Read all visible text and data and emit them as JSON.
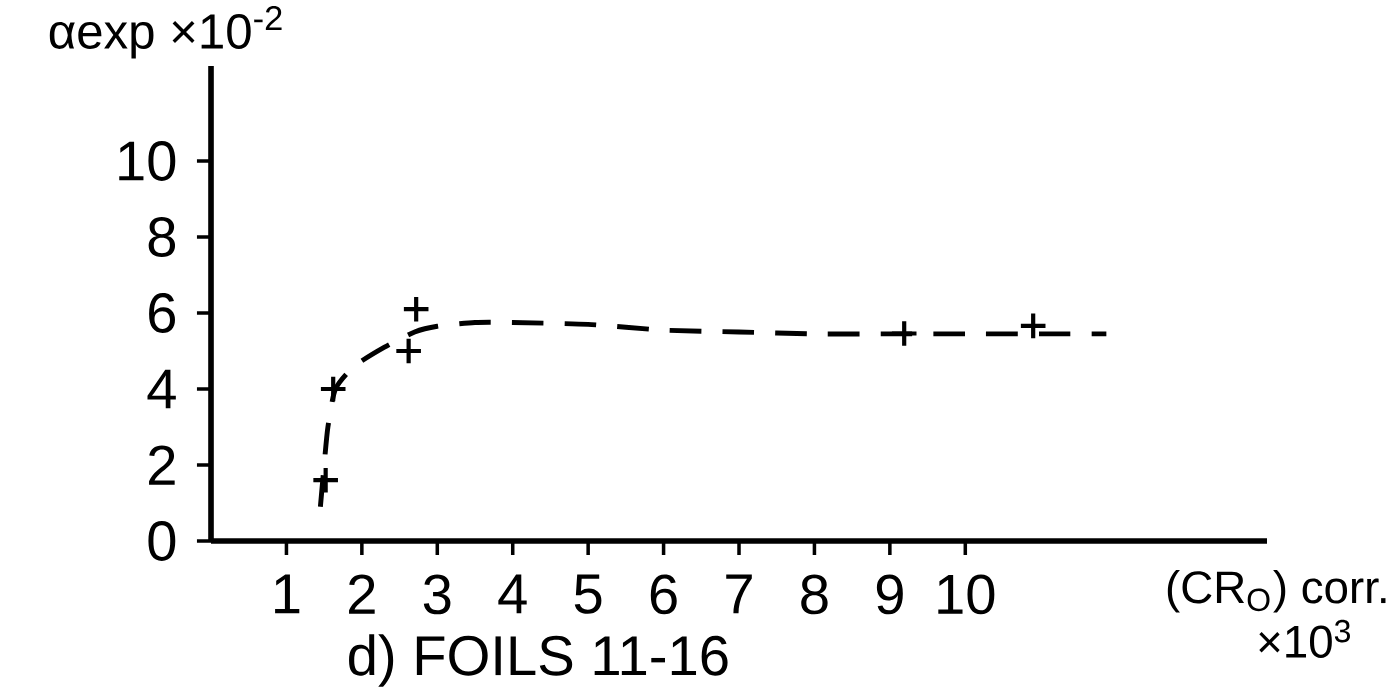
{
  "chart_data": {
    "type": "scatter",
    "title": "d)  FOILS 11-16",
    "xlabel": "(CR$_{O}$) corr.",
    "ylabel": "αexp ×10$^{-2}$",
    "annotations": [
      "×10$^{3}$"
    ],
    "xlim": [
      0,
      14
    ],
    "ylim": [
      0,
      12.5
    ],
    "xticks": [
      1,
      2,
      3,
      4,
      5,
      6,
      7,
      8,
      9,
      10
    ],
    "yticks": [
      0,
      2,
      4,
      6,
      8,
      10
    ],
    "grid": false,
    "series": [
      {
        "color": "#000000",
        "marker": "cross",
        "x": [
          1.52,
          1.62,
          2.62,
          2.72,
          9.19,
          10.9
        ],
        "values": [
          1.6,
          4.0,
          5.0,
          6.1,
          5.46,
          5.66
        ]
      },
      {
        "type": "line",
        "color": "#000000",
        "marker": "none",
        "line_style": "dashed",
        "x": [
          1.45,
          1.5,
          1.55,
          1.65,
          1.9,
          2.3,
          2.7,
          3.0,
          3.5,
          4.0,
          5.0,
          6.0,
          7.0,
          8.0,
          9.0,
          10.0,
          11.0,
          11.87
        ],
        "values": [
          0.9,
          2.0,
          3.0,
          4.0,
          4.6,
          5.1,
          5.5,
          5.65,
          5.75,
          5.75,
          5.7,
          5.55,
          5.5,
          5.45,
          5.45,
          5.45,
          5.45,
          5.45
        ]
      }
    ]
  }
}
